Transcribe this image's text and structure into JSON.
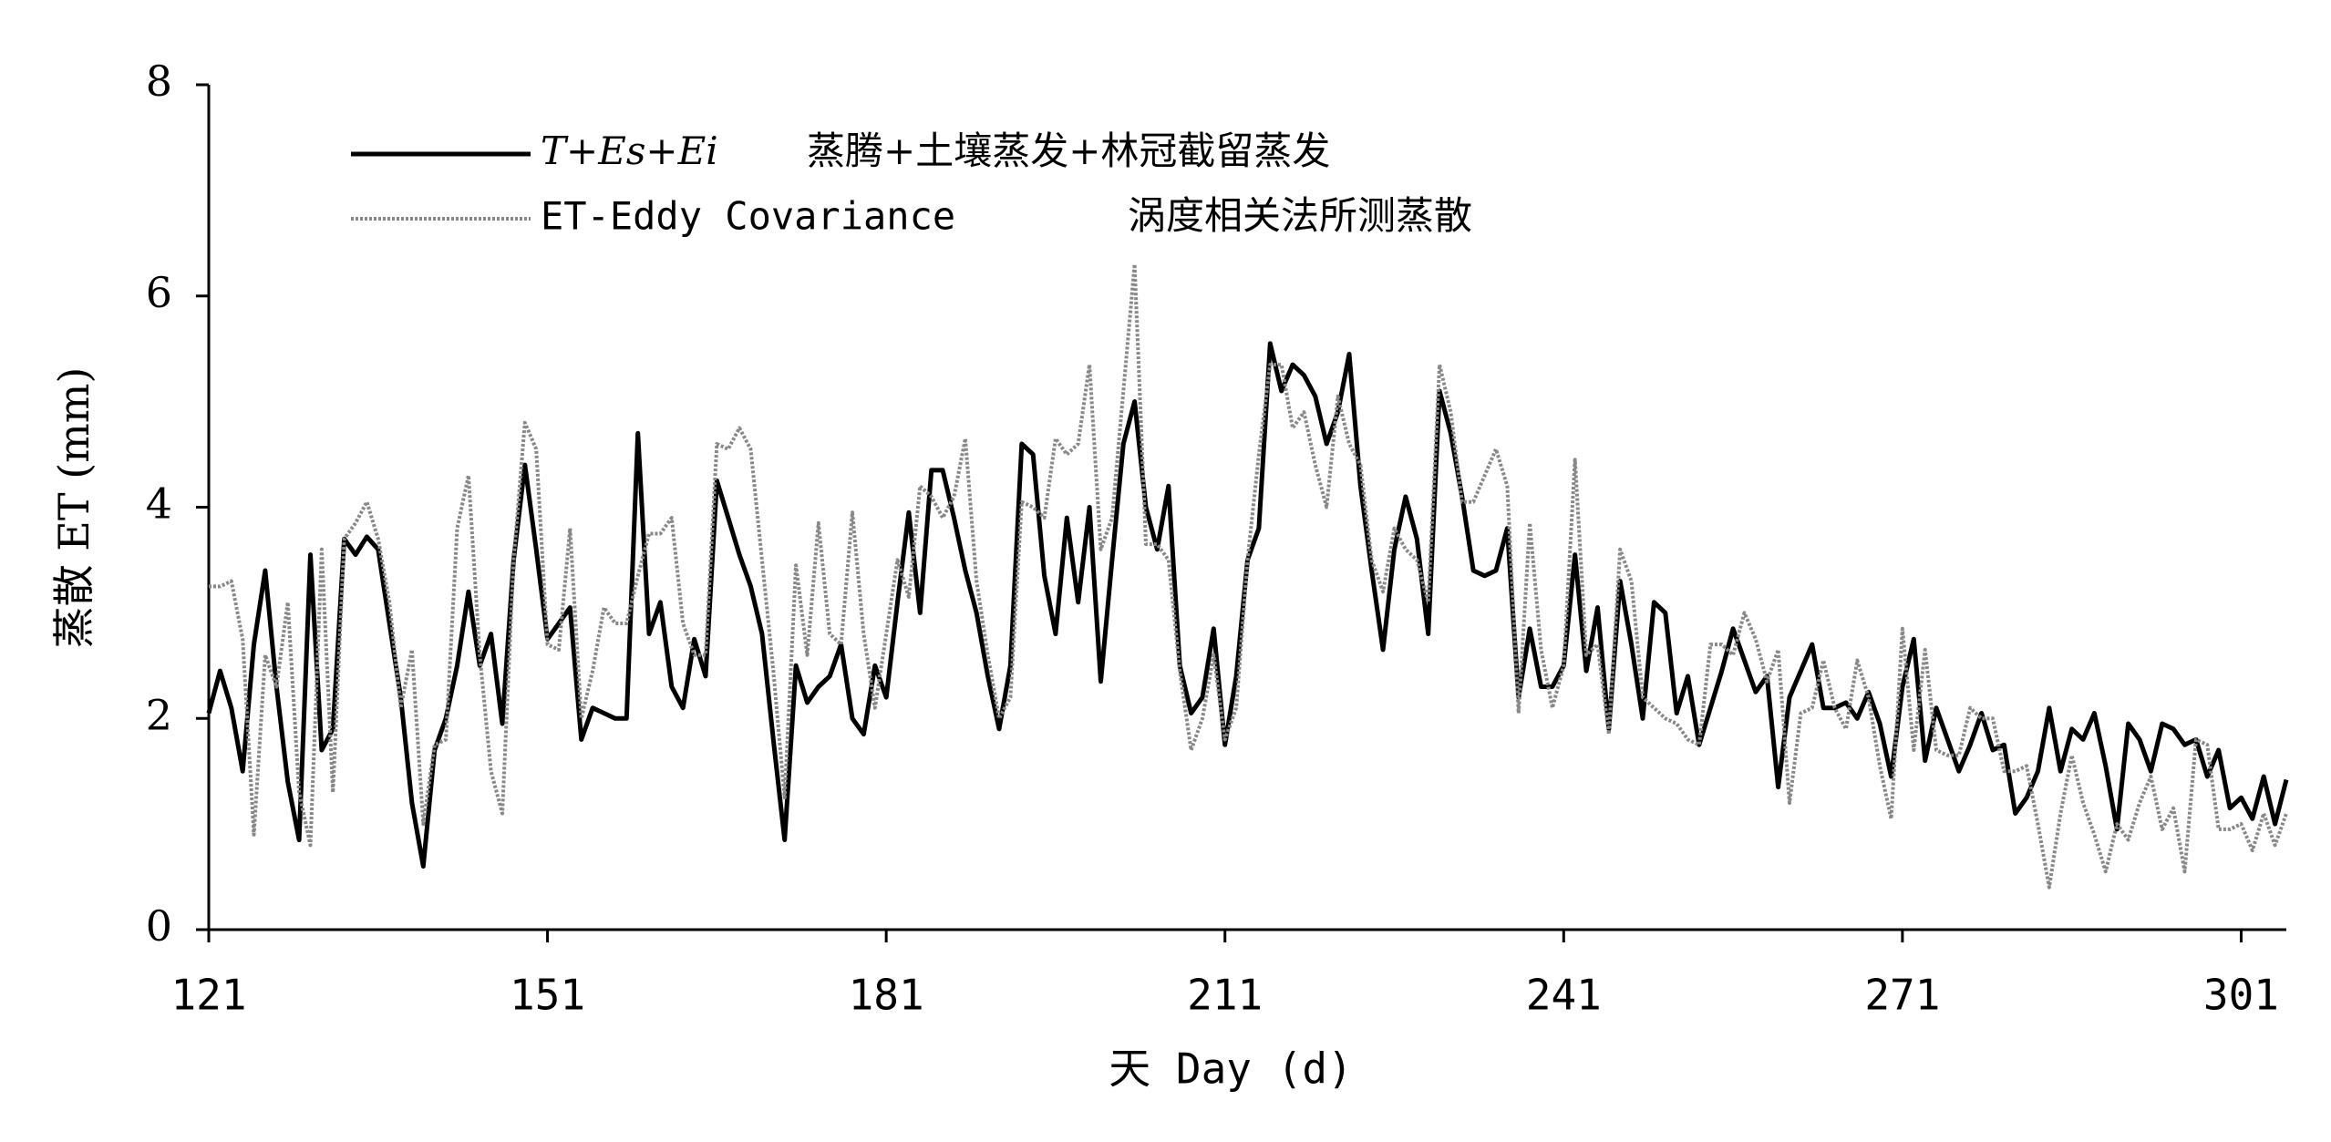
{
  "chart_data": {
    "type": "line",
    "xlabel": "天 Day (d)",
    "ylabel": "蒸散 ET (mm)",
    "xlim": [
      121,
      305
    ],
    "ylim": [
      0,
      8
    ],
    "xticks": [
      121,
      151,
      181,
      211,
      241,
      271,
      301
    ],
    "yticks": [
      0,
      2,
      4,
      6,
      8
    ],
    "grid": false,
    "legend": "upper left",
    "x": [
      121,
      122,
      123,
      124,
      125,
      126,
      127,
      128,
      129,
      130,
      131,
      132,
      133,
      134,
      135,
      136,
      137,
      138,
      139,
      140,
      141,
      142,
      143,
      144,
      145,
      146,
      147,
      148,
      149,
      150,
      151,
      152,
      153,
      154,
      155,
      156,
      157,
      158,
      159,
      160,
      161,
      162,
      163,
      164,
      165,
      166,
      167,
      168,
      169,
      170,
      171,
      172,
      173,
      174,
      175,
      176,
      177,
      178,
      179,
      180,
      181,
      182,
      183,
      184,
      185,
      186,
      187,
      188,
      189,
      190,
      191,
      192,
      193,
      194,
      195,
      196,
      197,
      198,
      199,
      200,
      201,
      202,
      203,
      204,
      205,
      206,
      207,
      208,
      209,
      210,
      211,
      212,
      213,
      214,
      215,
      216,
      217,
      218,
      219,
      220,
      221,
      222,
      223,
      224,
      225,
      226,
      227,
      228,
      229,
      230,
      231,
      232,
      233,
      234,
      235,
      236,
      237,
      238,
      239,
      240,
      241,
      242,
      243,
      244,
      245,
      246,
      247,
      248,
      249,
      250,
      251,
      252,
      253,
      254,
      255,
      256,
      257,
      258,
      259,
      260,
      261,
      262,
      263,
      264,
      265,
      266,
      267,
      268,
      269,
      270,
      271,
      272,
      273,
      274,
      275,
      276,
      277,
      278,
      279,
      280,
      281,
      282,
      283,
      284,
      285,
      286,
      287,
      288,
      289,
      290,
      291,
      292,
      293,
      294,
      295,
      296,
      297,
      298,
      299,
      300,
      301,
      302,
      303,
      304,
      305
    ],
    "series": [
      {
        "name": "T+Es+Ei",
        "description": "蒸腾+土壤蒸发+林冠截留蒸发",
        "color": "#000000",
        "style": "solid",
        "values": [
          2.05,
          2.45,
          2.1,
          1.5,
          2.7,
          3.4,
          2.3,
          1.4,
          0.85,
          3.55,
          1.7,
          1.9,
          3.7,
          3.55,
          3.72,
          3.6,
          2.9,
          2.2,
          1.2,
          0.6,
          1.7,
          2.0,
          2.5,
          3.2,
          2.5,
          2.8,
          1.95,
          3.5,
          4.4,
          3.6,
          2.75,
          2.9,
          3.05,
          1.8,
          2.1,
          2.05,
          2.0,
          2.0,
          4.7,
          2.8,
          3.1,
          2.3,
          2.1,
          2.75,
          2.4,
          4.25,
          3.9,
          3.55,
          3.25,
          2.8,
          1.8,
          0.85,
          2.5,
          2.15,
          2.3,
          2.4,
          2.7,
          2.0,
          1.85,
          2.5,
          2.2,
          3.1,
          3.95,
          3.0,
          4.35,
          4.35,
          3.9,
          3.4,
          3.0,
          2.4,
          1.9,
          2.5,
          4.6,
          4.5,
          3.35,
          2.8,
          3.9,
          3.1,
          4.0,
          2.35,
          3.5,
          4.6,
          5.0,
          4.0,
          3.6,
          4.2,
          2.5,
          2.05,
          2.2,
          2.85,
          1.75,
          2.4,
          3.5,
          3.8,
          5.55,
          5.1,
          5.35,
          5.25,
          5.05,
          4.6,
          4.9,
          5.45,
          4.2,
          3.4,
          2.65,
          3.6,
          4.1,
          3.7,
          2.8,
          5.1,
          4.7,
          4.1,
          3.4,
          3.35,
          3.4,
          3.8,
          2.2,
          2.85,
          2.3,
          2.3,
          2.5,
          3.55,
          2.45,
          3.05,
          1.9,
          3.3,
          2.7,
          2.0,
          3.1,
          3.0,
          2.05,
          2.4,
          1.75,
          2.1,
          2.45,
          2.85,
          2.55,
          2.25,
          2.4,
          1.35,
          2.2,
          2.45,
          2.7,
          2.1,
          2.1,
          2.15,
          2.0,
          2.25,
          1.95,
          1.45,
          2.3,
          2.75,
          1.6,
          2.1,
          1.8,
          1.5,
          1.75,
          2.05,
          1.7,
          1.75,
          1.1,
          1.25,
          1.5,
          2.1,
          1.5,
          1.9,
          1.8,
          2.05,
          1.55,
          0.95,
          1.95,
          1.8,
          1.5,
          1.95,
          1.9,
          1.75,
          1.8,
          1.45,
          1.7,
          1.15,
          1.25,
          1.05,
          1.45,
          1.0,
          1.42
        ]
      },
      {
        "name": "ET-Eddy Covariance",
        "description": "涡度相关法所测蒸散",
        "color": "#888888",
        "style": "dotted",
        "values": [
          3.25,
          3.25,
          3.3,
          2.75,
          0.9,
          2.6,
          2.3,
          3.1,
          1.3,
          0.8,
          3.6,
          1.3,
          3.7,
          3.85,
          4.05,
          3.7,
          3.1,
          2.1,
          2.65,
          1.0,
          1.75,
          1.8,
          3.8,
          4.3,
          2.6,
          1.5,
          1.1,
          3.5,
          4.8,
          4.55,
          2.7,
          2.65,
          3.8,
          2.0,
          2.45,
          3.05,
          2.9,
          2.9,
          3.35,
          3.75,
          3.75,
          3.9,
          2.9,
          2.6,
          2.6,
          4.6,
          4.55,
          4.75,
          4.55,
          3.5,
          2.45,
          1.25,
          3.45,
          2.6,
          3.85,
          2.8,
          2.7,
          3.95,
          2.8,
          2.1,
          2.8,
          3.5,
          3.15,
          4.2,
          4.1,
          3.9,
          4.1,
          4.65,
          3.3,
          2.6,
          2.0,
          2.2,
          4.05,
          4.0,
          3.9,
          4.65,
          4.5,
          4.6,
          5.35,
          3.6,
          3.9,
          5.1,
          6.3,
          3.65,
          3.65,
          3.5,
          2.45,
          1.7,
          2.0,
          2.6,
          1.8,
          2.1,
          3.5,
          4.5,
          5.35,
          5.35,
          4.75,
          4.9,
          4.4,
          4.0,
          5.05,
          4.6,
          4.4,
          3.5,
          3.2,
          3.8,
          3.6,
          3.5,
          3.1,
          5.35,
          4.9,
          4.05,
          4.05,
          4.3,
          4.55,
          4.2,
          2.05,
          3.85,
          2.65,
          2.1,
          2.5,
          4.45,
          2.6,
          2.7,
          1.85,
          3.6,
          3.3,
          2.2,
          2.1,
          2.0,
          1.95,
          1.8,
          1.75,
          2.7,
          2.7,
          2.6,
          3.0,
          2.75,
          2.35,
          2.65,
          1.2,
          2.05,
          2.1,
          2.55,
          2.1,
          1.9,
          2.55,
          2.2,
          1.55,
          1.05,
          2.85,
          1.7,
          2.65,
          1.7,
          1.65,
          1.65,
          2.1,
          2.0,
          2.0,
          1.5,
          1.5,
          1.55,
          1.0,
          0.4,
          1.1,
          1.65,
          1.2,
          0.9,
          0.55,
          1.0,
          0.85,
          1.2,
          1.45,
          0.95,
          1.15,
          0.55,
          1.8,
          1.75,
          0.95,
          0.95,
          1.0,
          0.75,
          1.1,
          0.8,
          1.1
        ]
      }
    ]
  }
}
